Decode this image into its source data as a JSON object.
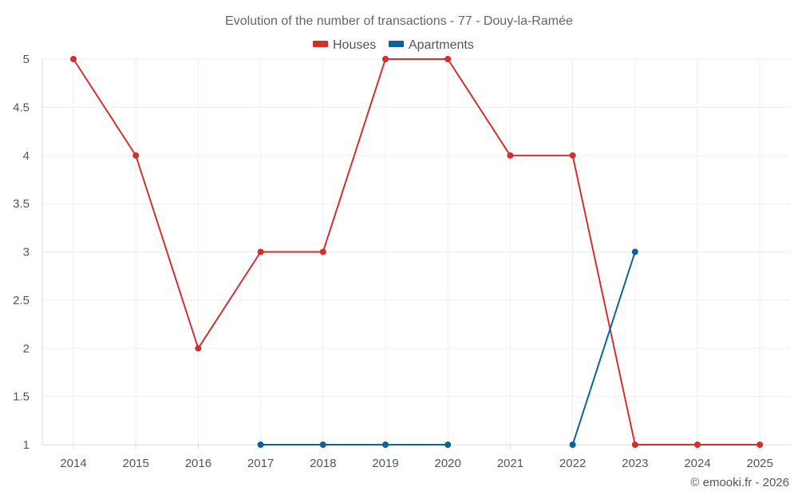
{
  "chart_data": {
    "type": "line",
    "title": "Evolution of the number of transactions - 77 - Douy-la-Ramée",
    "x": [
      "2014",
      "2015",
      "2016",
      "2017",
      "2018",
      "2019",
      "2020",
      "2021",
      "2022",
      "2023",
      "2024",
      "2025"
    ],
    "yticks": [
      "1",
      "1.5",
      "2",
      "2.5",
      "3",
      "3.5",
      "4",
      "4.5",
      "5"
    ],
    "ylim": [
      1,
      5
    ],
    "grid": true,
    "legend_position": "top-center",
    "series": [
      {
        "name": "Houses",
        "color": "#d32f2f",
        "values": [
          5,
          4,
          2,
          3,
          3,
          5,
          5,
          4,
          4,
          1,
          1,
          1
        ]
      },
      {
        "name": "Apartments",
        "color": "#0a6496",
        "values": [
          null,
          null,
          null,
          1,
          1,
          1,
          1,
          null,
          1,
          3,
          null,
          null
        ]
      }
    ]
  },
  "credit": "© emooki.fr - 2026"
}
